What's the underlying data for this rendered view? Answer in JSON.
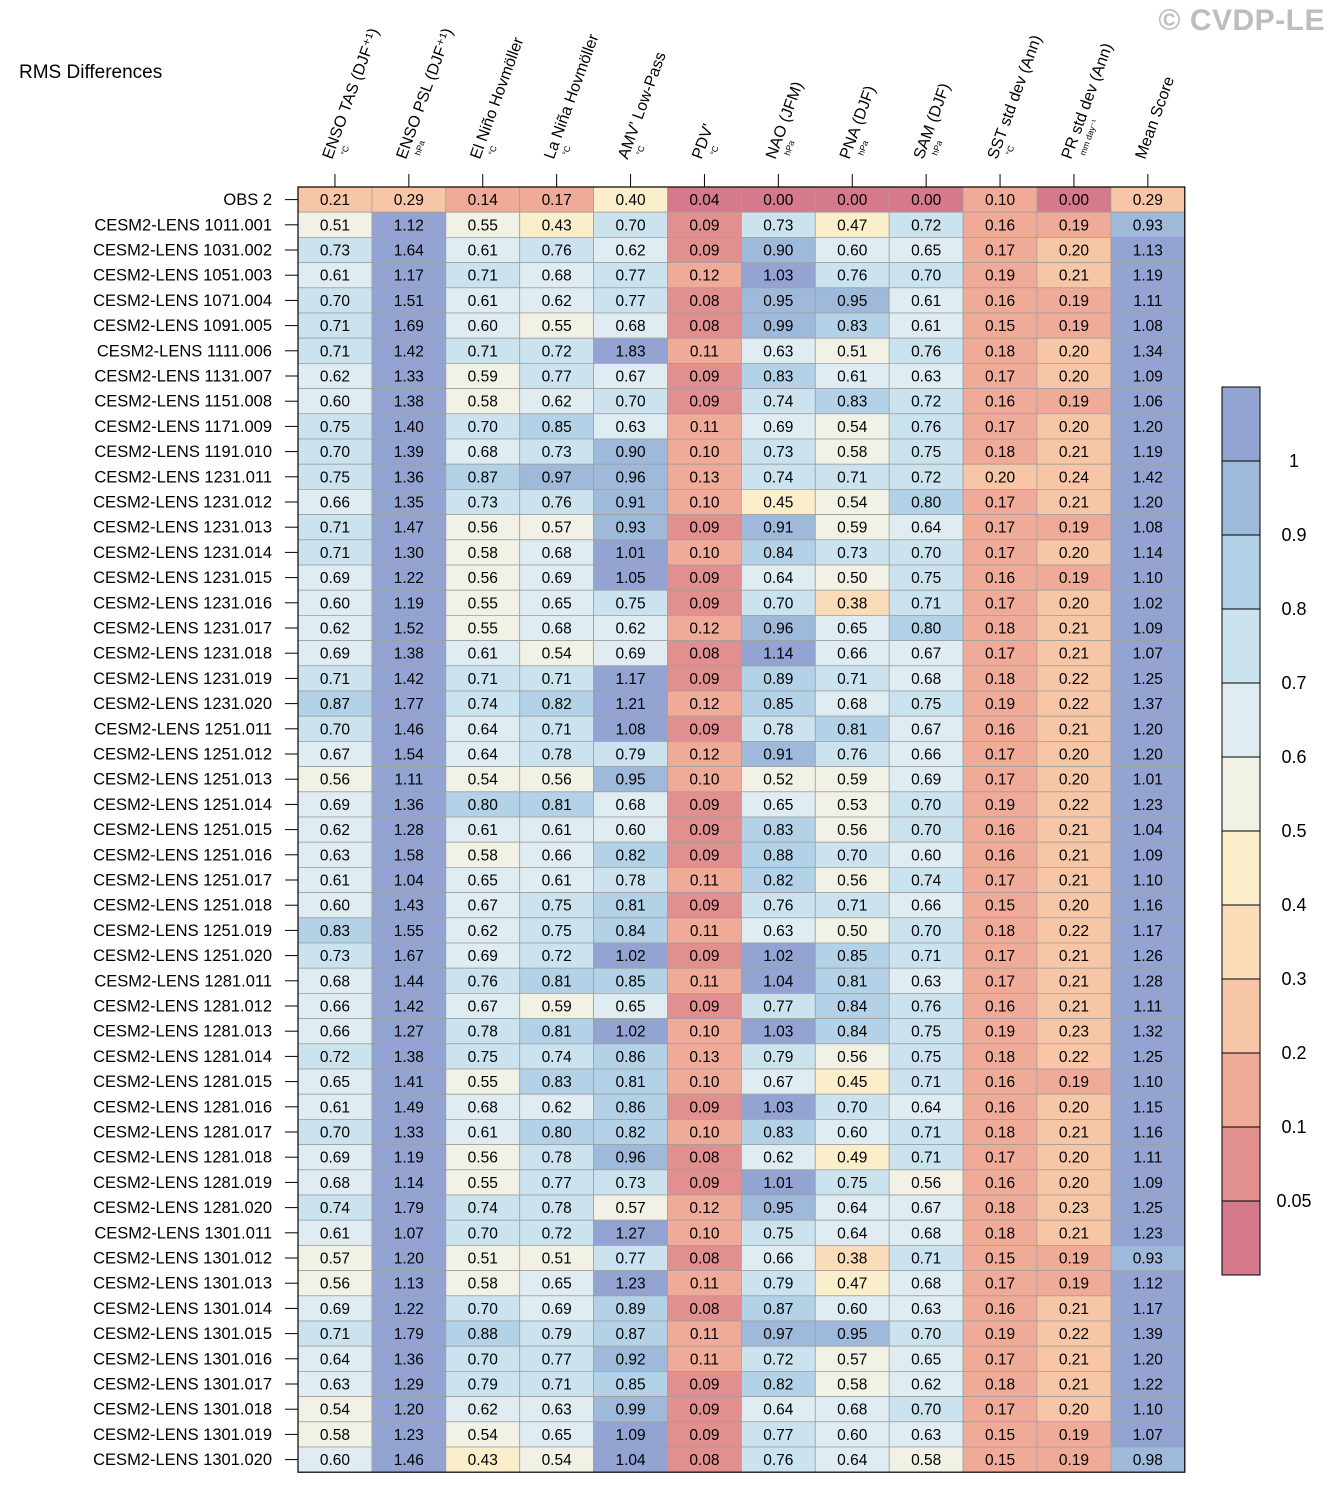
{
  "title": "RMS Differences",
  "watermark": "© CVDP-LE",
  "chart_data": {
    "type": "heatmap",
    "title": "RMS Differences",
    "columns": [
      {
        "label": "ENSO TAS (DJF⁺¹)",
        "unit": "°C"
      },
      {
        "label": "ENSO PSL (DJF⁺¹)",
        "unit": "hPa"
      },
      {
        "label": "El Niño Hovmöller",
        "unit": "°C"
      },
      {
        "label": "La Niña Hovmöller",
        "unit": "°C"
      },
      {
        "label": "AMV' Low-Pass",
        "unit": "°C"
      },
      {
        "label": "PDV'",
        "unit": "°C"
      },
      {
        "label": "NAO (JFM)",
        "unit": "hPa"
      },
      {
        "label": "PNA (DJF)",
        "unit": "hPa"
      },
      {
        "label": "SAM (DJF)",
        "unit": "hPa"
      },
      {
        "label": "SST std dev (Ann)",
        "unit": "°C"
      },
      {
        "label": "PR std dev (Ann)",
        "unit": "mm day⁻¹"
      },
      {
        "label": "Mean Score",
        "unit": ""
      }
    ],
    "rows": [
      "OBS 2",
      "CESM2-LENS 1011.001",
      "CESM2-LENS 1031.002",
      "CESM2-LENS 1051.003",
      "CESM2-LENS 1071.004",
      "CESM2-LENS 1091.005",
      "CESM2-LENS 1111.006",
      "CESM2-LENS 1131.007",
      "CESM2-LENS 1151.008",
      "CESM2-LENS 1171.009",
      "CESM2-LENS 1191.010",
      "CESM2-LENS 1231.011",
      "CESM2-LENS 1231.012",
      "CESM2-LENS 1231.013",
      "CESM2-LENS 1231.014",
      "CESM2-LENS 1231.015",
      "CESM2-LENS 1231.016",
      "CESM2-LENS 1231.017",
      "CESM2-LENS 1231.018",
      "CESM2-LENS 1231.019",
      "CESM2-LENS 1231.020",
      "CESM2-LENS 1251.011",
      "CESM2-LENS 1251.012",
      "CESM2-LENS 1251.013",
      "CESM2-LENS 1251.014",
      "CESM2-LENS 1251.015",
      "CESM2-LENS 1251.016",
      "CESM2-LENS 1251.017",
      "CESM2-LENS 1251.018",
      "CESM2-LENS 1251.019",
      "CESM2-LENS 1251.020",
      "CESM2-LENS 1281.011",
      "CESM2-LENS 1281.012",
      "CESM2-LENS 1281.013",
      "CESM2-LENS 1281.014",
      "CESM2-LENS 1281.015",
      "CESM2-LENS 1281.016",
      "CESM2-LENS 1281.017",
      "CESM2-LENS 1281.018",
      "CESM2-LENS 1281.019",
      "CESM2-LENS 1281.020",
      "CESM2-LENS 1301.011",
      "CESM2-LENS 1301.012",
      "CESM2-LENS 1301.013",
      "CESM2-LENS 1301.014",
      "CESM2-LENS 1301.015",
      "CESM2-LENS 1301.016",
      "CESM2-LENS 1301.017",
      "CESM2-LENS 1301.018",
      "CESM2-LENS 1301.019",
      "CESM2-LENS 1301.020"
    ],
    "values": [
      [
        0.21,
        0.29,
        0.14,
        0.17,
        0.4,
        0.04,
        0.0,
        0.0,
        0.0,
        0.1,
        0.0,
        0.29
      ],
      [
        0.51,
        1.12,
        0.55,
        0.43,
        0.7,
        0.09,
        0.73,
        0.47,
        0.72,
        0.16,
        0.19,
        0.93
      ],
      [
        0.73,
        1.64,
        0.61,
        0.76,
        0.62,
        0.09,
        0.9,
        0.6,
        0.65,
        0.17,
        0.2,
        1.13
      ],
      [
        0.61,
        1.17,
        0.71,
        0.68,
        0.77,
        0.12,
        1.03,
        0.76,
        0.7,
        0.19,
        0.21,
        1.19
      ],
      [
        0.7,
        1.51,
        0.61,
        0.62,
        0.77,
        0.08,
        0.95,
        0.95,
        0.61,
        0.16,
        0.19,
        1.11
      ],
      [
        0.71,
        1.69,
        0.6,
        0.55,
        0.68,
        0.08,
        0.99,
        0.83,
        0.61,
        0.15,
        0.19,
        1.08
      ],
      [
        0.71,
        1.42,
        0.71,
        0.72,
        1.83,
        0.11,
        0.63,
        0.51,
        0.76,
        0.18,
        0.2,
        1.34
      ],
      [
        0.62,
        1.33,
        0.59,
        0.77,
        0.67,
        0.09,
        0.83,
        0.61,
        0.63,
        0.17,
        0.2,
        1.09
      ],
      [
        0.6,
        1.38,
        0.58,
        0.62,
        0.7,
        0.09,
        0.74,
        0.83,
        0.72,
        0.16,
        0.19,
        1.06
      ],
      [
        0.75,
        1.4,
        0.7,
        0.85,
        0.63,
        0.11,
        0.69,
        0.54,
        0.76,
        0.17,
        0.2,
        1.2
      ],
      [
        0.7,
        1.39,
        0.68,
        0.73,
        0.9,
        0.1,
        0.73,
        0.58,
        0.75,
        0.18,
        0.21,
        1.19
      ],
      [
        0.75,
        1.36,
        0.87,
        0.97,
        0.96,
        0.13,
        0.74,
        0.71,
        0.72,
        0.2,
        0.24,
        1.42
      ],
      [
        0.66,
        1.35,
        0.73,
        0.76,
        0.91,
        0.1,
        0.45,
        0.54,
        0.8,
        0.17,
        0.21,
        1.2
      ],
      [
        0.71,
        1.47,
        0.56,
        0.57,
        0.93,
        0.09,
        0.91,
        0.59,
        0.64,
        0.17,
        0.19,
        1.08
      ],
      [
        0.71,
        1.3,
        0.58,
        0.68,
        1.01,
        0.1,
        0.84,
        0.73,
        0.7,
        0.17,
        0.2,
        1.14
      ],
      [
        0.69,
        1.22,
        0.56,
        0.69,
        1.05,
        0.09,
        0.64,
        0.5,
        0.75,
        0.16,
        0.19,
        1.1
      ],
      [
        0.6,
        1.19,
        0.55,
        0.65,
        0.75,
        0.09,
        0.7,
        0.38,
        0.71,
        0.17,
        0.2,
        1.02
      ],
      [
        0.62,
        1.52,
        0.55,
        0.68,
        0.62,
        0.12,
        0.96,
        0.65,
        0.8,
        0.18,
        0.21,
        1.09
      ],
      [
        0.69,
        1.38,
        0.61,
        0.54,
        0.69,
        0.08,
        1.14,
        0.66,
        0.67,
        0.17,
        0.21,
        1.07
      ],
      [
        0.71,
        1.42,
        0.71,
        0.71,
        1.17,
        0.09,
        0.89,
        0.71,
        0.68,
        0.18,
        0.22,
        1.25
      ],
      [
        0.87,
        1.77,
        0.74,
        0.82,
        1.21,
        0.12,
        0.85,
        0.68,
        0.75,
        0.19,
        0.22,
        1.37
      ],
      [
        0.7,
        1.46,
        0.64,
        0.71,
        1.08,
        0.09,
        0.78,
        0.81,
        0.67,
        0.16,
        0.21,
        1.2
      ],
      [
        0.67,
        1.54,
        0.64,
        0.78,
        0.79,
        0.12,
        0.91,
        0.76,
        0.66,
        0.17,
        0.2,
        1.2
      ],
      [
        0.56,
        1.11,
        0.54,
        0.56,
        0.95,
        0.1,
        0.52,
        0.59,
        0.69,
        0.17,
        0.2,
        1.01
      ],
      [
        0.69,
        1.36,
        0.8,
        0.81,
        0.68,
        0.09,
        0.65,
        0.53,
        0.7,
        0.19,
        0.22,
        1.23
      ],
      [
        0.62,
        1.28,
        0.61,
        0.61,
        0.6,
        0.09,
        0.83,
        0.56,
        0.7,
        0.16,
        0.21,
        1.04
      ],
      [
        0.63,
        1.58,
        0.58,
        0.66,
        0.82,
        0.09,
        0.88,
        0.7,
        0.6,
        0.16,
        0.21,
        1.09
      ],
      [
        0.61,
        1.04,
        0.65,
        0.61,
        0.78,
        0.11,
        0.82,
        0.56,
        0.74,
        0.17,
        0.21,
        1.1
      ],
      [
        0.6,
        1.43,
        0.67,
        0.75,
        0.81,
        0.09,
        0.76,
        0.71,
        0.66,
        0.15,
        0.2,
        1.16
      ],
      [
        0.83,
        1.55,
        0.62,
        0.75,
        0.84,
        0.11,
        0.63,
        0.5,
        0.7,
        0.18,
        0.22,
        1.17
      ],
      [
        0.73,
        1.67,
        0.69,
        0.72,
        1.02,
        0.09,
        1.02,
        0.85,
        0.71,
        0.17,
        0.21,
        1.26
      ],
      [
        0.68,
        1.44,
        0.76,
        0.81,
        0.85,
        0.11,
        1.04,
        0.81,
        0.63,
        0.17,
        0.21,
        1.28
      ],
      [
        0.66,
        1.42,
        0.67,
        0.59,
        0.65,
        0.09,
        0.77,
        0.84,
        0.76,
        0.16,
        0.21,
        1.11
      ],
      [
        0.66,
        1.27,
        0.78,
        0.81,
        1.02,
        0.1,
        1.03,
        0.84,
        0.75,
        0.19,
        0.23,
        1.32
      ],
      [
        0.72,
        1.38,
        0.75,
        0.74,
        0.86,
        0.13,
        0.79,
        0.56,
        0.75,
        0.18,
        0.22,
        1.25
      ],
      [
        0.65,
        1.41,
        0.55,
        0.83,
        0.81,
        0.1,
        0.67,
        0.45,
        0.71,
        0.16,
        0.19,
        1.1
      ],
      [
        0.61,
        1.49,
        0.68,
        0.62,
        0.86,
        0.09,
        1.03,
        0.7,
        0.64,
        0.16,
        0.2,
        1.15
      ],
      [
        0.7,
        1.33,
        0.61,
        0.8,
        0.82,
        0.1,
        0.83,
        0.6,
        0.71,
        0.18,
        0.21,
        1.16
      ],
      [
        0.69,
        1.19,
        0.56,
        0.78,
        0.96,
        0.08,
        0.62,
        0.49,
        0.71,
        0.17,
        0.2,
        1.11
      ],
      [
        0.68,
        1.14,
        0.55,
        0.77,
        0.73,
        0.09,
        1.01,
        0.75,
        0.56,
        0.16,
        0.2,
        1.09
      ],
      [
        0.74,
        1.79,
        0.74,
        0.78,
        0.57,
        0.12,
        0.95,
        0.64,
        0.67,
        0.18,
        0.23,
        1.25
      ],
      [
        0.61,
        1.07,
        0.7,
        0.72,
        1.27,
        0.1,
        0.75,
        0.64,
        0.68,
        0.18,
        0.21,
        1.23
      ],
      [
        0.57,
        1.2,
        0.51,
        0.51,
        0.77,
        0.08,
        0.66,
        0.38,
        0.71,
        0.15,
        0.19,
        0.93
      ],
      [
        0.56,
        1.13,
        0.58,
        0.65,
        1.23,
        0.11,
        0.79,
        0.47,
        0.68,
        0.17,
        0.19,
        1.12
      ],
      [
        0.69,
        1.22,
        0.7,
        0.69,
        0.89,
        0.08,
        0.87,
        0.6,
        0.63,
        0.16,
        0.21,
        1.17
      ],
      [
        0.71,
        1.79,
        0.88,
        0.79,
        0.87,
        0.11,
        0.97,
        0.95,
        0.7,
        0.19,
        0.22,
        1.39
      ],
      [
        0.64,
        1.36,
        0.7,
        0.77,
        0.92,
        0.11,
        0.72,
        0.57,
        0.65,
        0.17,
        0.21,
        1.2
      ],
      [
        0.63,
        1.29,
        0.79,
        0.71,
        0.85,
        0.09,
        0.82,
        0.58,
        0.62,
        0.18,
        0.21,
        1.22
      ],
      [
        0.54,
        1.2,
        0.62,
        0.63,
        0.99,
        0.09,
        0.64,
        0.68,
        0.7,
        0.17,
        0.2,
        1.1
      ],
      [
        0.58,
        1.23,
        0.54,
        0.65,
        1.09,
        0.09,
        0.77,
        0.6,
        0.63,
        0.15,
        0.19,
        1.07
      ],
      [
        0.6,
        1.46,
        0.43,
        0.54,
        1.04,
        0.08,
        0.76,
        0.64,
        0.58,
        0.15,
        0.19,
        0.98
      ]
    ],
    "colorbar": {
      "levels": [
        0.05,
        0.1,
        0.2,
        0.3,
        0.4,
        0.5,
        0.6,
        0.7,
        0.8,
        0.9,
        1
      ],
      "tick_labels": [
        "0.05",
        "0.1",
        "0.2",
        "0.3",
        "0.4",
        "0.5",
        "0.6",
        "0.7",
        "0.8",
        "0.9",
        "1"
      ],
      "colors": [
        "#d47a8c",
        "#e28f8f",
        "#f0ab98",
        "#f7c6a6",
        "#fbdcb8",
        "#fbeecb",
        "#f2f1e6",
        "#dfedf2",
        "#cbe3ee",
        "#b3d1e7",
        "#9fb9da",
        "#93a4d2"
      ]
    }
  }
}
